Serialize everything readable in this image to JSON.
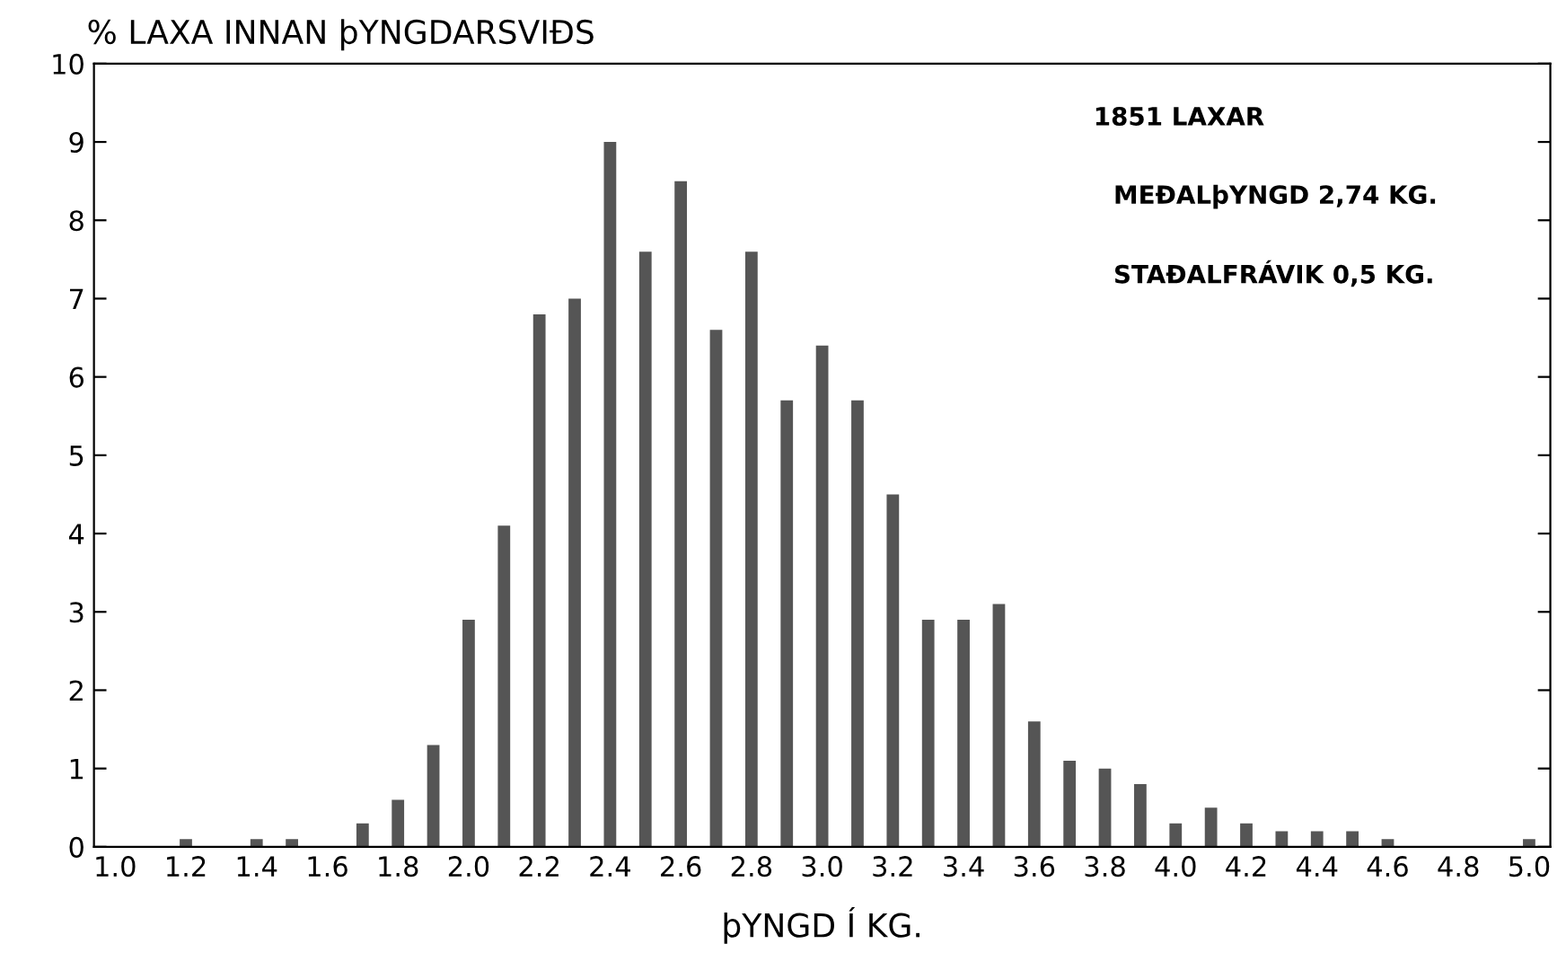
{
  "chart_data": {
    "type": "bar",
    "title": "% LAXA INNAN þYNGDARSVIÐS",
    "xlabel": "þYNGD Í KG.",
    "categories": [
      "1.0",
      null,
      "1.2",
      null,
      "1.4",
      null,
      "1.6",
      null,
      "1.8",
      null,
      "2.0",
      null,
      "2.2",
      null,
      "2.4",
      null,
      "2.6",
      null,
      "2.8",
      null,
      "3.0",
      null,
      "3.2",
      null,
      "3.4",
      null,
      "3.6",
      null,
      "3.8",
      null,
      "4.0",
      null,
      "4.2",
      null,
      "4.4",
      null,
      "4.6",
      null,
      "4.8",
      null,
      "5.0"
    ],
    "values": [
      0,
      0,
      0.1,
      0,
      0.1,
      0.1,
      0,
      0.3,
      0.6,
      1.3,
      2.9,
      4.1,
      6.8,
      7.0,
      9.0,
      7.6,
      8.5,
      6.6,
      7.6,
      5.7,
      6.4,
      5.7,
      4.5,
      2.9,
      2.9,
      3.1,
      1.6,
      1.1,
      1.0,
      0.8,
      0.3,
      0.5,
      0.3,
      0.2,
      0.2,
      0.2,
      0.1,
      0,
      0,
      0,
      0.1
    ],
    "color": "#555555",
    "ylim": [
      0,
      10
    ],
    "yticks": [
      0,
      1,
      2,
      3,
      4,
      5,
      6,
      7,
      8,
      9,
      10
    ],
    "annotations": [
      "1851 LAXAR",
      "MEÐALþYNGD 2,74 KG.",
      "STAÐALFRÁVIK 0,5 KG."
    ],
    "grid": false
  }
}
